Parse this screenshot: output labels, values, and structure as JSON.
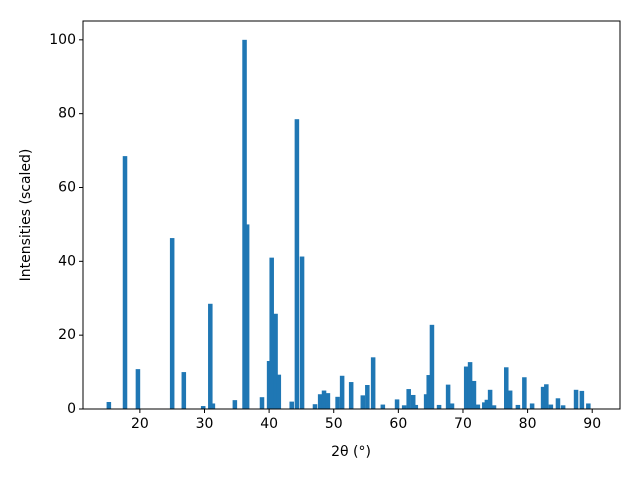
{
  "chart_data": {
    "type": "bar",
    "x_label": "2θ (°)",
    "y_label": "Intensities (scaled)",
    "x": [
      15.2,
      17.7,
      19.7,
      25.0,
      26.8,
      29.8,
      30.9,
      31.3,
      34.7,
      36.2,
      36.6,
      38.9,
      40.0,
      40.4,
      41.0,
      41.5,
      43.5,
      44.3,
      45.1,
      47.1,
      47.9,
      48.5,
      49.1,
      50.6,
      51.3,
      52.7,
      54.5,
      55.2,
      56.1,
      57.6,
      59.8,
      60.9,
      61.6,
      62.3,
      62.7,
      64.3,
      64.7,
      65.2,
      66.3,
      67.7,
      68.3,
      70.5,
      71.1,
      71.7,
      72.3,
      73.3,
      73.7,
      74.2,
      74.8,
      76.7,
      77.3,
      78.5,
      79.5,
      80.7,
      82.4,
      82.9,
      83.6,
      84.7,
      85.5,
      87.5,
      88.4,
      89.4
    ],
    "values": [
      1.9,
      68.5,
      10.8,
      46.3,
      10,
      0.8,
      28.5,
      1.5,
      2.4,
      100,
      50,
      3.2,
      13,
      41,
      25.8,
      9.3,
      2,
      78.5,
      41.3,
      1.3,
      4,
      5,
      4.3,
      3.3,
      9,
      7.3,
      3.7,
      6.5,
      14,
      1.2,
      2.6,
      1,
      5.4,
      3.8,
      1.1,
      4,
      9.2,
      22.8,
      1.1,
      6.6,
      1.5,
      11.5,
      12.7,
      7.6,
      1.2,
      1.8,
      2.5,
      5.2,
      1,
      11.3,
      5,
      1.1,
      8.6,
      1.5,
      6,
      6.7,
      1.2,
      2.9,
      1,
      5.2,
      4.9,
      1.5
    ],
    "color": "#1f77b4",
    "xlim": [
      11.2,
      94.3
    ],
    "xticks": [
      20,
      30,
      40,
      50,
      60,
      70,
      80,
      90
    ],
    "ylim": [
      0,
      105.1
    ],
    "yticks": [
      0,
      20,
      40,
      60,
      80,
      100
    ]
  }
}
